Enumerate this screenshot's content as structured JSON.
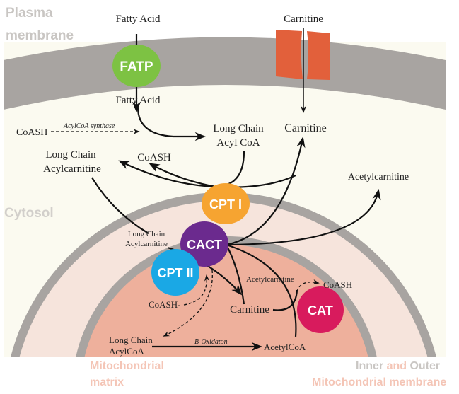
{
  "regions": {
    "plasma_membrane": [
      "Plasma",
      "membrane"
    ],
    "cytosol": "Cytosol",
    "matrix": [
      "Mitochondrial",
      "matrix"
    ],
    "mito_membrane": {
      "inner": "Inner",
      "and": "and",
      "outer": "Outer",
      "line2": "Mitochondrial membrane"
    }
  },
  "enzymes": {
    "fatp": "FATP",
    "cpt1": "CPT I",
    "cact": "CACT",
    "cpt2": "CPT II",
    "cat": "CAT"
  },
  "labels": {
    "fatty_acid_out": "Fatty Acid",
    "carnitine_out": "Carnitine",
    "fatty_acid_in": "Fatty Acid",
    "coash_1": "CoASH",
    "acylcoa_synthase": "AcylCoA synthase",
    "lc_acylcoa": [
      "Long Chain",
      "Acyl CoA"
    ],
    "carnitine_cyt": "Carnitine",
    "lc_acylcarnitine": [
      "Long Chain",
      "Acylcarnitine"
    ],
    "coash_2": "CoASH",
    "acetylcarnitine_cyt": "Acetylcarnitine",
    "lc_acylcarnitine_ims": [
      "Long Chain",
      "Acylcarnitine"
    ],
    "acetylcarnitine_mat": "Acetylcarnitine",
    "coash_3": "CoASH",
    "coash_4": "CoASH-",
    "carnitine_mat": "Carnitine",
    "lc_acylcoa_mat": [
      "Long Chain",
      "AcylCoA"
    ],
    "beta_oxidation": "B-Oxidaton",
    "acetylcoa": "AcetylCoA"
  },
  "colors": {
    "membrane": "#a8a4a1",
    "channel": "#e2603b",
    "cytosol": "#fbfaf0",
    "intermembrane": "#f6e4dc",
    "matrix": "#eeb09c",
    "fatp": "#7dc243",
    "cpt1": "#f6a431",
    "cact": "#6b2a8e",
    "cpt2": "#1aa8e5",
    "cat": "#d81b5d",
    "label_gray": "#c9c6c3",
    "label_pink": "#f4c5b6"
  }
}
